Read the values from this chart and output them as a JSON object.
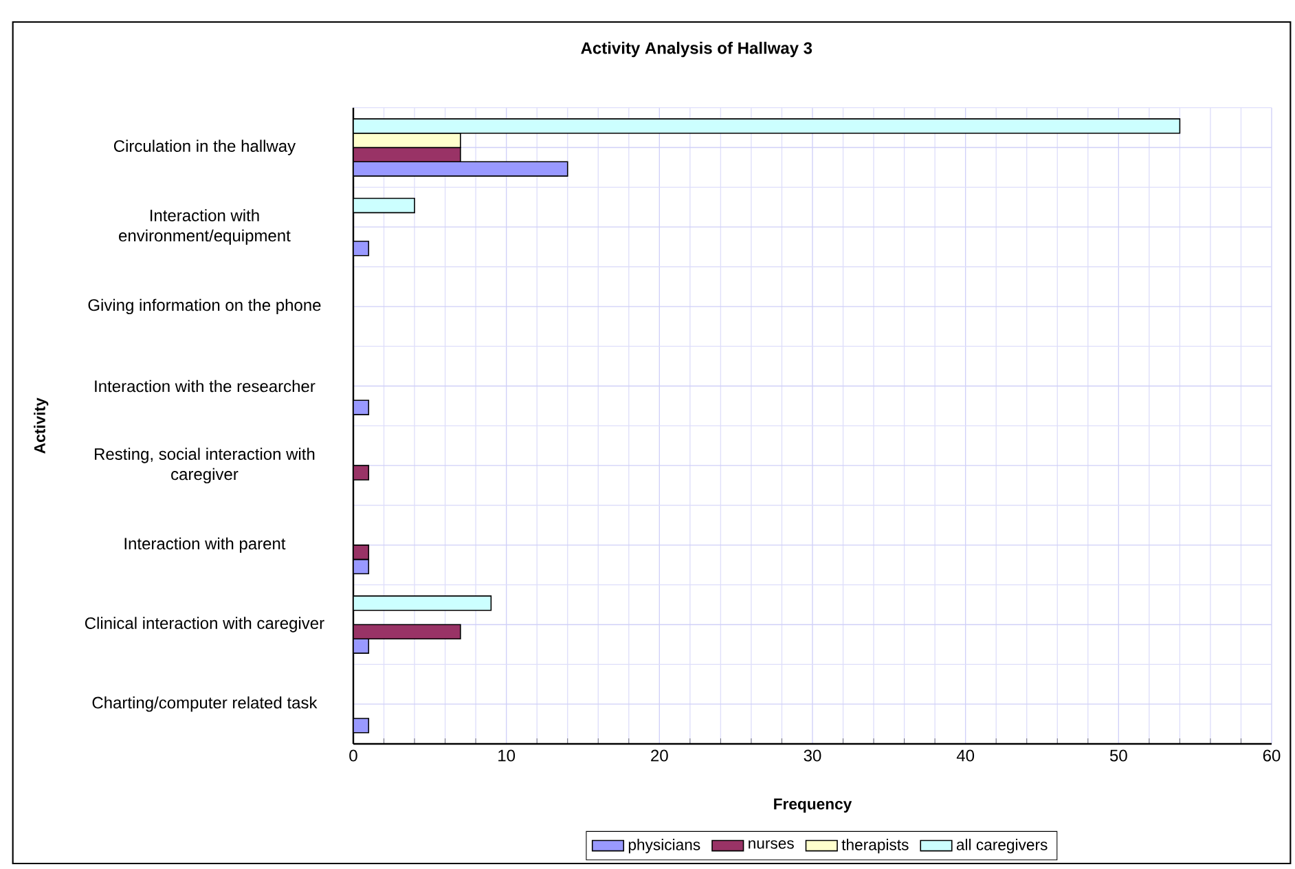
{
  "chart_data": {
    "type": "bar",
    "orientation": "horizontal",
    "title": "Activity Analysis of Hallway 3",
    "xlabel": "Frequency",
    "ylabel": "Activity",
    "categories": [
      "Circulation in the hallway",
      "Interaction with environment/equipment",
      "Giving information on the phone",
      "Interaction with the researcher",
      "Resting, social interaction with caregiver",
      "Interaction with parent",
      "Clinical interaction with caregiver",
      "Charting/computer related task"
    ],
    "series": [
      {
        "name": "physicians",
        "color": "#9999ff",
        "values": [
          14,
          1,
          0,
          1,
          0,
          1,
          1,
          1
        ]
      },
      {
        "name": "nurses",
        "color": "#993366",
        "values": [
          7,
          0,
          0,
          0,
          1,
          1,
          7,
          0
        ]
      },
      {
        "name": "therapists",
        "color": "#ffffcc",
        "values": [
          7,
          0,
          0,
          0,
          0,
          0,
          0,
          0
        ]
      },
      {
        "name": "all caregivers",
        "color": "#ccffff",
        "values": [
          54,
          4,
          0,
          0,
          0,
          0,
          9,
          0
        ]
      }
    ],
    "xlim": [
      0,
      60
    ],
    "xticks": [
      0,
      10,
      20,
      30,
      40,
      50,
      60
    ],
    "grid": true,
    "legend": "bottom"
  }
}
